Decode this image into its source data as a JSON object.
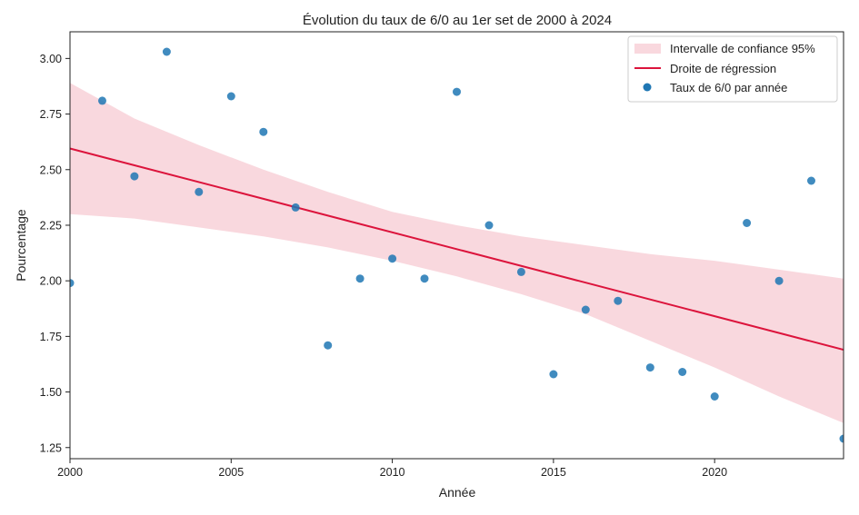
{
  "chart_data": {
    "type": "scatter",
    "title": "Évolution du taux de 6/0 au 1er set de 2000 à 2024",
    "xlabel": "Année",
    "ylabel": "Pourcentage",
    "xlim": [
      2000,
      2024
    ],
    "ylim": [
      1.2,
      3.12
    ],
    "x_ticks": [
      2000,
      2005,
      2010,
      2015,
      2020
    ],
    "x_tick_labels": [
      "2000",
      "2005",
      "2010",
      "2015",
      "2020"
    ],
    "y_ticks": [
      1.25,
      1.5,
      1.75,
      2.0,
      2.25,
      2.5,
      2.75,
      3.0
    ],
    "y_tick_labels": [
      "1.25",
      "1.50",
      "1.75",
      "2.00",
      "2.25",
      "2.50",
      "2.75",
      "3.00"
    ],
    "grid": false,
    "legend_position": "top-right",
    "series": [
      {
        "name": "Taux de 6/0 par année",
        "kind": "scatter",
        "color": "#1f77b4",
        "x": [
          2000,
          2001,
          2002,
          2003,
          2004,
          2005,
          2006,
          2007,
          2008,
          2009,
          2010,
          2011,
          2012,
          2013,
          2014,
          2015,
          2016,
          2017,
          2018,
          2019,
          2020,
          2021,
          2022,
          2023,
          2024
        ],
        "y": [
          1.99,
          2.81,
          2.47,
          3.03,
          2.4,
          2.83,
          2.67,
          2.33,
          1.71,
          2.01,
          2.1,
          2.01,
          2.85,
          2.25,
          2.04,
          1.58,
          1.87,
          1.91,
          1.61,
          1.59,
          1.48,
          2.26,
          2.0,
          2.45,
          1.29
        ]
      },
      {
        "name": "Droite de régression",
        "kind": "line",
        "color": "#dc143c",
        "x": [
          2000,
          2024
        ],
        "y": [
          2.595,
          1.69
        ]
      },
      {
        "name": "Intervalle de confiance 95%",
        "kind": "band",
        "color": "#f4b8c3",
        "x": [
          2000,
          2002,
          2004,
          2006,
          2008,
          2010,
          2012,
          2014,
          2016,
          2018,
          2020,
          2022,
          2024
        ],
        "upper": [
          2.89,
          2.73,
          2.61,
          2.5,
          2.4,
          2.31,
          2.25,
          2.2,
          2.16,
          2.12,
          2.09,
          2.05,
          2.01
        ],
        "lower": [
          2.3,
          2.28,
          2.24,
          2.2,
          2.15,
          2.09,
          2.02,
          1.94,
          1.85,
          1.73,
          1.61,
          1.48,
          1.36
        ]
      }
    ]
  }
}
